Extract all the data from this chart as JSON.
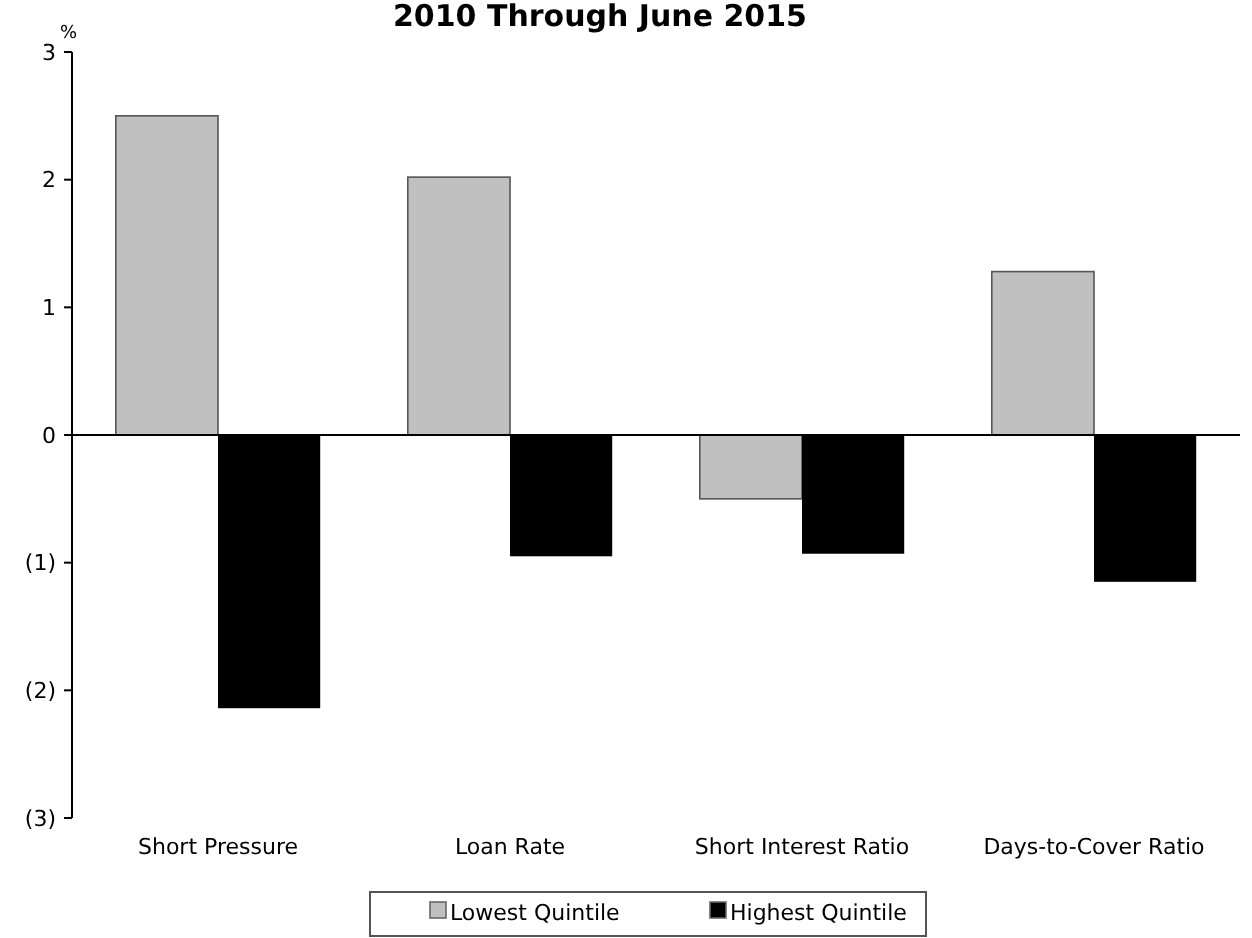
{
  "chart_data": {
    "type": "bar",
    "title": "2010 Through June 2015",
    "ylabel": "%",
    "categories": [
      "Short Pressure",
      "Loan Rate",
      "Short Interest Ratio",
      "Days-to-Cover Ratio"
    ],
    "series": [
      {
        "name": "Lowest Quintile",
        "color": "#c0c0c0",
        "values": [
          2.5,
          2.02,
          -0.5,
          1.28
        ]
      },
      {
        "name": "Highest Quintile",
        "color": "#000000",
        "values": [
          -2.14,
          -0.95,
          -0.93,
          -1.15
        ]
      }
    ],
    "ylim": [
      -3,
      3
    ],
    "yticks": [
      {
        "value": -3,
        "label": "(3)"
      },
      {
        "value": -2,
        "label": "(2)"
      },
      {
        "value": -1,
        "label": "(1)"
      },
      0,
      1,
      2,
      3
    ],
    "legend": "bottom"
  }
}
